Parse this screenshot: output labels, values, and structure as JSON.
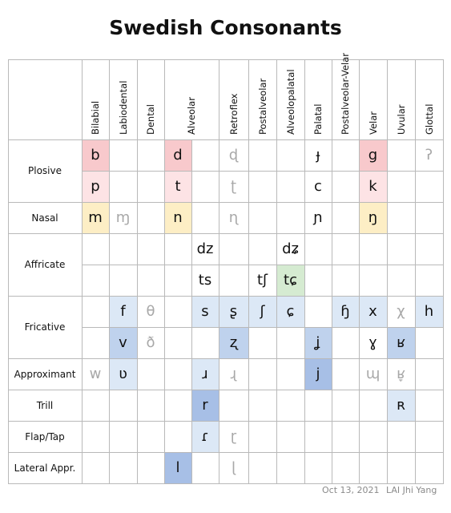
{
  "title": "Swedish Consonants",
  "footer": {
    "date": "Oct 13, 2021",
    "author": "LAI Jhi Yang"
  },
  "colors": {
    "red": "#f8c9cc",
    "pink": "#fde3e5",
    "yellow": "#fdeec5",
    "green": "#d5ebd1",
    "lightblue": "#dce8f6",
    "blue": "#bfd2ed",
    "darkblue": "#a7bfe6",
    "grid": "#b9b9b9",
    "faded": "#a8a8a8"
  },
  "columns": [
    "Bilabial",
    "Labiodental",
    "Dental",
    "Alveolar",
    "Retroflex",
    "Postalveolar",
    "Alveolopalatal",
    "Palatal",
    "Postalveolar-Velar",
    "Velar",
    "Uvular",
    "Glottal"
  ],
  "rows": [
    {
      "label": "Plosive",
      "span": 2
    },
    {
      "label": "Nasal",
      "span": 1
    },
    {
      "label": "Affricate",
      "span": 2
    },
    {
      "label": "Fricative",
      "span": 2
    },
    {
      "label": "Approximant",
      "span": 1
    },
    {
      "label": "Trill",
      "span": 1
    },
    {
      "label": "Flap/Tap",
      "span": 1
    },
    {
      "label": "Lateral Appr.",
      "span": 1
    }
  ],
  "cells": [
    {
      "row": 0,
      "col": 0,
      "symbol": "b",
      "color": "red"
    },
    {
      "row": 0,
      "col": 3,
      "symbol": "d",
      "color": "red"
    },
    {
      "row": 0,
      "col": 4,
      "symbol": "ɖ",
      "faded": true
    },
    {
      "row": 0,
      "col": 7,
      "symbol": "ɟ"
    },
    {
      "row": 0,
      "col": 9,
      "symbol": "g",
      "color": "red"
    },
    {
      "row": 0,
      "col": 11,
      "symbol": "ʔ",
      "faded": true
    },
    {
      "row": 1,
      "col": 0,
      "symbol": "p",
      "color": "pink"
    },
    {
      "row": 1,
      "col": 3,
      "symbol": "t",
      "color": "pink"
    },
    {
      "row": 1,
      "col": 4,
      "symbol": "ʈ",
      "faded": true
    },
    {
      "row": 1,
      "col": 7,
      "symbol": "c"
    },
    {
      "row": 1,
      "col": 9,
      "symbol": "k",
      "color": "pink"
    },
    {
      "row": 2,
      "col": 0,
      "symbol": "m",
      "color": "yellow"
    },
    {
      "row": 2,
      "col": 1,
      "symbol": "ɱ",
      "faded": true
    },
    {
      "row": 2,
      "col": 3,
      "symbol": "n",
      "color": "yellow"
    },
    {
      "row": 2,
      "col": 4,
      "symbol": "ɳ",
      "faded": true
    },
    {
      "row": 2,
      "col": 7,
      "symbol": "ɲ"
    },
    {
      "row": 2,
      "col": 9,
      "symbol": "ŋ",
      "color": "yellow"
    },
    {
      "row": 3,
      "col": 3,
      "symbol": "dz",
      "half": "right"
    },
    {
      "row": 3,
      "col": 6,
      "symbol": "dʑ"
    },
    {
      "row": 4,
      "col": 3,
      "symbol": "ts",
      "half": "right"
    },
    {
      "row": 4,
      "col": 5,
      "symbol": "tʃ"
    },
    {
      "row": 4,
      "col": 6,
      "symbol": "tɕ",
      "color": "green"
    },
    {
      "row": 5,
      "col": 1,
      "symbol": "f",
      "color": "lightblue"
    },
    {
      "row": 5,
      "col": 2,
      "symbol": "θ",
      "faded": true
    },
    {
      "row": 5,
      "col": 3,
      "symbol": "s",
      "color": "lightblue",
      "half": "right"
    },
    {
      "row": 5,
      "col": 4,
      "symbol": "ʂ",
      "color": "lightblue"
    },
    {
      "row": 5,
      "col": 5,
      "symbol": "ʃ",
      "color": "lightblue"
    },
    {
      "row": 5,
      "col": 6,
      "symbol": "ɕ",
      "color": "lightblue"
    },
    {
      "row": 5,
      "col": 8,
      "symbol": "ɧ",
      "color": "lightblue"
    },
    {
      "row": 5,
      "col": 9,
      "symbol": "x",
      "color": "lightblue"
    },
    {
      "row": 5,
      "col": 10,
      "symbol": "χ",
      "faded": true
    },
    {
      "row": 5,
      "col": 11,
      "symbol": "h",
      "color": "lightblue"
    },
    {
      "row": 6,
      "col": 1,
      "symbol": "v",
      "color": "blue"
    },
    {
      "row": 6,
      "col": 2,
      "symbol": "ð",
      "faded": true
    },
    {
      "row": 6,
      "col": 4,
      "symbol": "ʐ",
      "color": "blue"
    },
    {
      "row": 6,
      "col": 7,
      "symbol": "ʝ",
      "color": "blue"
    },
    {
      "row": 6,
      "col": 9,
      "symbol": "ɣ"
    },
    {
      "row": 6,
      "col": 10,
      "symbol": "ʁ",
      "color": "blue"
    },
    {
      "row": 7,
      "col": 0,
      "symbol": "w",
      "faded": true
    },
    {
      "row": 7,
      "col": 1,
      "symbol": "ʋ",
      "color": "lightblue"
    },
    {
      "row": 7,
      "col": 3,
      "symbol": "ɹ",
      "color": "lightblue",
      "half": "right"
    },
    {
      "row": 7,
      "col": 4,
      "symbol": "ɻ",
      "faded": true
    },
    {
      "row": 7,
      "col": 7,
      "symbol": "j",
      "color": "darkblue"
    },
    {
      "row": 7,
      "col": 9,
      "symbol": "ɰ",
      "faded": true
    },
    {
      "row": 7,
      "col": 10,
      "symbol": "ʁ̞",
      "faded": true
    },
    {
      "row": 8,
      "col": 3,
      "symbol": "r",
      "color": "darkblue",
      "half": "right"
    },
    {
      "row": 8,
      "col": 10,
      "symbol": "ʀ",
      "color": "lightblue"
    },
    {
      "row": 9,
      "col": 3,
      "symbol": "ɾ",
      "color": "lightblue",
      "half": "right"
    },
    {
      "row": 9,
      "col": 4,
      "symbol": "ɽ",
      "faded": true
    },
    {
      "row": 10,
      "col": 3,
      "symbol": "l",
      "color": "darkblue",
      "half": "left"
    },
    {
      "row": 10,
      "col": 4,
      "symbol": "ɭ",
      "faded": true
    }
  ]
}
